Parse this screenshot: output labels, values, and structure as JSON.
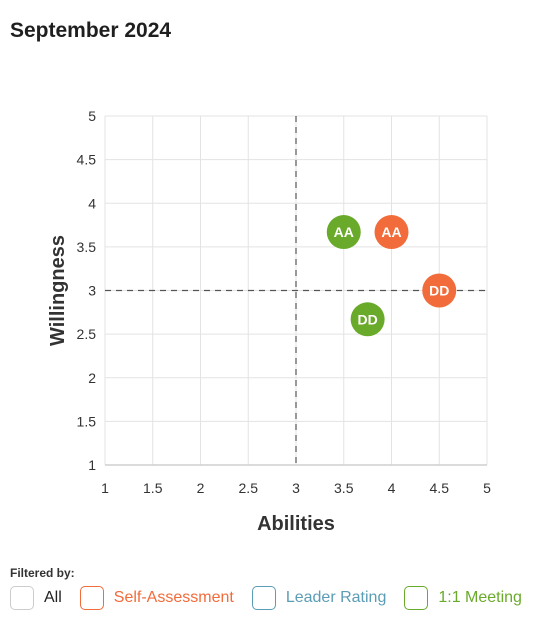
{
  "title": "September 2024",
  "chart_data": {
    "type": "scatter",
    "xlabel": "Abilities",
    "ylabel": "Willingness",
    "xlim": [
      1,
      5
    ],
    "ylim": [
      1,
      5
    ],
    "xticks": [
      "1",
      "1.5",
      "2",
      "2.5",
      "3",
      "3.5",
      "4",
      "4.5",
      "5"
    ],
    "yticks": [
      "1",
      "1.5",
      "2",
      "2.5",
      "3",
      "3.5",
      "4",
      "4.5",
      "5"
    ],
    "grid": true,
    "reference_lines": {
      "x": 3,
      "y": 3
    },
    "points": [
      {
        "label": "AA",
        "x": 3.5,
        "y": 3.67,
        "series": "1:1 Meeting"
      },
      {
        "label": "AA",
        "x": 4.0,
        "y": 3.67,
        "series": "Self-Assessment"
      },
      {
        "label": "DD",
        "x": 4.5,
        "y": 3.0,
        "series": "Self-Assessment"
      },
      {
        "label": "DD",
        "x": 3.75,
        "y": 2.67,
        "series": "1:1 Meeting"
      }
    ]
  },
  "colors": {
    "Self-Assessment": "#f26b3a",
    "Leader Rating": "#5b9db5",
    "1:1 Meeting": "#6aaa2a",
    "All": "#222222"
  },
  "filters": {
    "label": "Filtered by:",
    "items": [
      {
        "key": "all",
        "label": "All",
        "color_key": "All"
      },
      {
        "key": "self",
        "label": "Self-Assessment",
        "color_key": "Self-Assessment"
      },
      {
        "key": "leader",
        "label": "Leader Rating",
        "color_key": "Leader Rating"
      },
      {
        "key": "meeting",
        "label": "1:1 Meeting",
        "color_key": "1:1 Meeting"
      }
    ]
  }
}
